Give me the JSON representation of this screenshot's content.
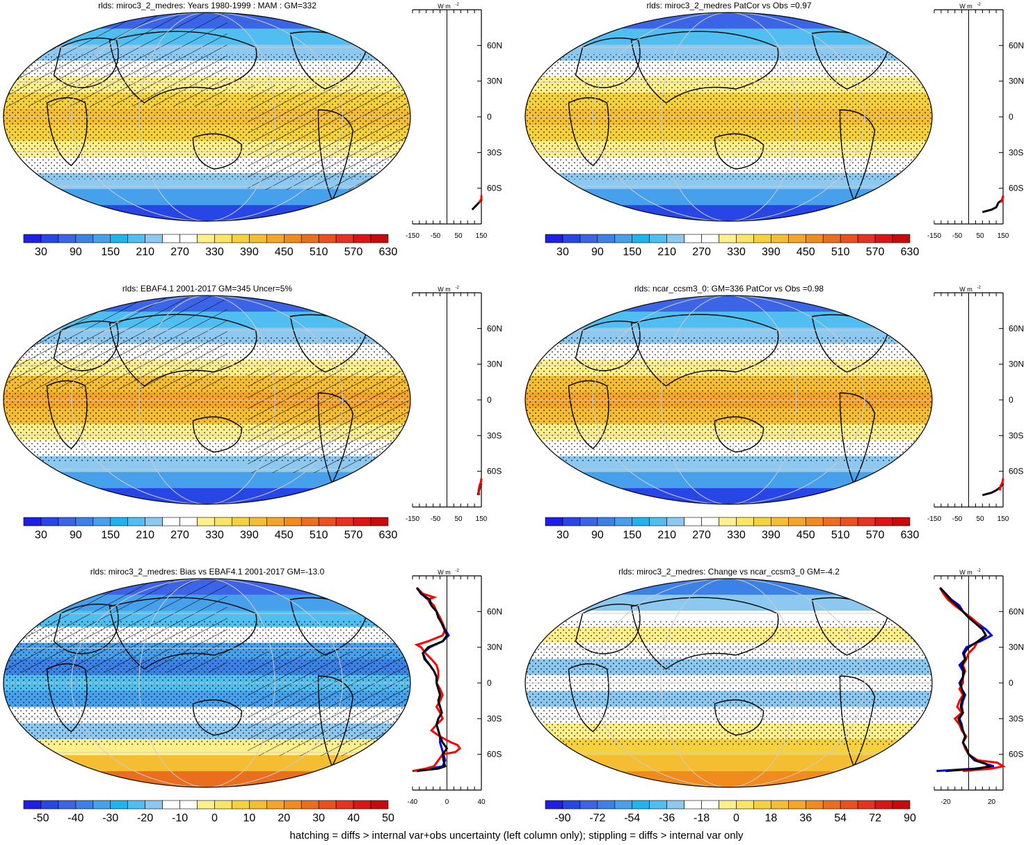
{
  "footer_note": "hatching = diffs > internal var+obs uncertainty (left column only); stippling = diffs > internal var only",
  "colors": {
    "abs_scale": [
      "#1e1ee6",
      "#2846e6",
      "#3c64e6",
      "#3c82e6",
      "#46a0eb",
      "#1eb4f0",
      "#50bef0",
      "#8cc8f0",
      "#ffffff",
      "#ffffff",
      "#fff08c",
      "#fae664",
      "#f5d23c",
      "#f5be32",
      "#f5a528",
      "#f08c1e",
      "#eb6e1e",
      "#eb501e",
      "#e6321e",
      "#dc1414",
      "#c80a0a"
    ],
    "diff_scale": [
      "#1e1ee6",
      "#2846e6",
      "#3c64e6",
      "#3c82e6",
      "#46a0eb",
      "#1eb4f0",
      "#50bef0",
      "#8cc8f0",
      "#ffffff",
      "#ffffff",
      "#fff08c",
      "#fae664",
      "#f5d23c",
      "#f5be32",
      "#f5a528",
      "#f08c1e",
      "#eb6e1e",
      "#eb501e",
      "#e6321e",
      "#dc1414",
      "#c80a0a"
    ],
    "zonal_model": "#000000",
    "zonal_red": "#ff0000",
    "zonal_blue": "#0000ff"
  },
  "chart_data": [
    {
      "type": "heatmap",
      "panel": "top-left",
      "title": "rlds: miroc3_2_medres: Years 1980-1999 : MAM : GM=332",
      "colorbar_labels": [
        "30",
        "90",
        "150",
        "210",
        "270",
        "330",
        "390",
        "450",
        "510",
        "570",
        "630"
      ],
      "zonal_axis": {
        "x_ticks": [
          "-150",
          "-50",
          "50",
          "150"
        ],
        "unit": "W m",
        "unit_sup": "-2",
        "lat_labels": [
          "60N",
          "30N",
          "0",
          "30S",
          "60S"
        ]
      },
      "zonal_series": [
        {
          "color": "black",
          "lat": [
            -78,
            -74,
            -70,
            -66
          ],
          "value": [
            110,
            130,
            150,
            150
          ]
        },
        {
          "color": "red",
          "lat": [
            -72,
            -69,
            -66
          ],
          "value": [
            140,
            150,
            150
          ]
        }
      ]
    },
    {
      "type": "heatmap",
      "panel": "top-right",
      "title": "rlds: miroc3_2_medres PatCor vs Obs =0.97",
      "colorbar_labels": [
        "30",
        "90",
        "150",
        "210",
        "270",
        "330",
        "390",
        "450",
        "510",
        "570",
        "630"
      ],
      "zonal_axis": {
        "x_ticks": [
          "-150",
          "-50",
          "50",
          "150"
        ],
        "unit": "W m",
        "unit_sup": "-2",
        "lat_labels": [
          "60N",
          "30N",
          "0",
          "30S",
          "60S"
        ]
      },
      "zonal_series": [
        {
          "color": "black",
          "lat": [
            -80,
            -78,
            -76,
            -72,
            -70,
            -67
          ],
          "value": [
            60,
            100,
            120,
            130,
            145,
            150
          ]
        },
        {
          "color": "red",
          "lat": [
            -72,
            -69,
            -66
          ],
          "value": [
            140,
            148,
            150
          ]
        }
      ]
    },
    {
      "type": "heatmap",
      "panel": "middle-left",
      "title": "rlds: EBAF4.1 2001-2017 GM=345 Uncer=5%",
      "colorbar_labels": [
        "30",
        "90",
        "150",
        "210",
        "270",
        "330",
        "390",
        "450",
        "510",
        "570",
        "630"
      ],
      "zonal_axis": {
        "x_ticks": [
          "-150",
          "-50",
          "50",
          "150"
        ],
        "unit": "W m",
        "unit_sup": "-2",
        "lat_labels": [
          "60N",
          "30N",
          "0",
          "30S",
          "60S"
        ]
      },
      "zonal_series": [
        {
          "color": "black",
          "lat": [
            -80,
            -76,
            -72,
            -70
          ],
          "value": [
            135,
            140,
            145,
            150
          ]
        },
        {
          "color": "red",
          "lat": [
            -80,
            -76,
            -72,
            -69,
            -66
          ],
          "value": [
            140,
            138,
            142,
            148,
            150
          ]
        }
      ]
    },
    {
      "type": "heatmap",
      "panel": "middle-right",
      "title": "rlds: ncar_ccsm3_0: GM=336 PatCor vs Obs =0.98",
      "colorbar_labels": [
        "30",
        "90",
        "150",
        "210",
        "270",
        "330",
        "390",
        "450",
        "510",
        "570",
        "630"
      ],
      "zonal_axis": {
        "x_ticks": [
          "-150",
          "-50",
          "50",
          "150"
        ],
        "unit": "W m",
        "unit_sup": "-2",
        "lat_labels": [
          "60N",
          "30N",
          "0",
          "30S",
          "60S"
        ]
      },
      "zonal_series": [
        {
          "color": "black",
          "lat": [
            -80,
            -78,
            -76,
            -73,
            -70
          ],
          "value": [
            60,
            100,
            120,
            140,
            150
          ]
        },
        {
          "color": "red",
          "lat": [
            -76,
            -72,
            -69,
            -66
          ],
          "value": [
            135,
            140,
            148,
            150
          ]
        }
      ]
    },
    {
      "type": "heatmap",
      "panel": "bottom-left",
      "title": "rlds: miroc3_2_medres: Bias vs EBAF4.1 2001-2017 GM=-13.0",
      "colorbar_labels": [
        "-50",
        "-40",
        "-30",
        "-20",
        "-10",
        "0",
        "10",
        "20",
        "30",
        "40",
        "50"
      ],
      "zonal_axis": {
        "x_ticks": [
          "-40",
          "0",
          "40"
        ],
        "unit": "W m",
        "unit_sup": "-2",
        "lat_labels": [
          "60N",
          "30N",
          "0",
          "30S",
          "60S"
        ]
      },
      "zonal_series": [
        {
          "color": "blue",
          "lat": [
            80,
            75,
            70,
            65,
            60,
            55,
            50,
            45,
            40,
            35,
            30,
            25,
            20,
            15,
            10,
            5,
            0,
            -5,
            -10,
            -15,
            -20,
            -25,
            -30,
            -35,
            -40,
            -45,
            -50,
            -55,
            -60,
            -65,
            -70,
            -72,
            -74
          ],
          "value": [
            -35,
            -30,
            -22,
            -18,
            -12,
            -10,
            -5,
            -2,
            2,
            -5,
            -20,
            -28,
            -25,
            -20,
            -15,
            -12,
            -12,
            -10,
            -8,
            -10,
            -8,
            -6,
            -10,
            -12,
            -10,
            -8,
            -8,
            -6,
            -4,
            -2,
            -5,
            -20,
            -40
          ]
        },
        {
          "color": "red",
          "lat": [
            80,
            75,
            72,
            70,
            65,
            60,
            55,
            50,
            45,
            40,
            35,
            32,
            30,
            28,
            25,
            20,
            15,
            10,
            5,
            0,
            -5,
            -10,
            -15,
            -20,
            -25,
            -30,
            -35,
            -40,
            -45,
            -50,
            -52,
            -55,
            -58,
            -60,
            -63,
            -65,
            -70,
            -72,
            -74
          ],
          "value": [
            -35,
            -28,
            -15,
            -22,
            -15,
            -12,
            -8,
            -5,
            -2,
            -5,
            -22,
            -35,
            -30,
            -28,
            -25,
            -18,
            -12,
            -10,
            -10,
            -12,
            -8,
            -5,
            -8,
            -12,
            -8,
            -5,
            -12,
            -18,
            -8,
            5,
            12,
            15,
            10,
            -5,
            -8,
            -10,
            -15,
            -25,
            -40
          ]
        },
        {
          "color": "black",
          "lat": [
            80,
            75,
            70,
            65,
            60,
            55,
            50,
            45,
            40,
            35,
            30,
            25,
            20,
            15,
            10,
            5,
            0,
            -5,
            -10,
            -15,
            -20,
            -25,
            -30,
            -35,
            -40,
            -45,
            -50,
            -55,
            -60,
            -65,
            -70,
            -72,
            -74
          ],
          "value": [
            -35,
            -30,
            -20,
            -18,
            -12,
            -10,
            -6,
            -3,
            0,
            -5,
            -22,
            -28,
            -26,
            -20,
            -15,
            -12,
            -12,
            -10,
            -8,
            -10,
            -8,
            -6,
            -10,
            -12,
            -10,
            -8,
            -5,
            0,
            -5,
            -4,
            -2,
            -10,
            -35
          ]
        }
      ]
    },
    {
      "type": "heatmap",
      "panel": "bottom-right",
      "title": "rlds: miroc3_2_medres: Change vs ncar_ccsm3_0 GM=-4.2",
      "colorbar_labels": [
        "-90",
        "-72",
        "-54",
        "-36",
        "-18",
        "0",
        "18",
        "36",
        "54",
        "72",
        "90"
      ],
      "zonal_axis": {
        "x_ticks": [
          "-20",
          "20"
        ],
        "unit": "W m",
        "unit_sup": "-2",
        "lat_labels": [
          "60N",
          "30N",
          "0",
          "30S",
          "60S"
        ]
      },
      "zonal_series": [
        {
          "color": "blue",
          "lat": [
            80,
            75,
            70,
            65,
            60,
            55,
            50,
            45,
            40,
            35,
            30,
            25,
            20,
            15,
            10,
            5,
            0,
            -5,
            -10,
            -15,
            -20,
            -25,
            -30,
            -35,
            -40,
            -45,
            -50,
            -55,
            -60,
            -65,
            -68,
            -70,
            -72,
            -74
          ],
          "value": [
            -25,
            -20,
            -15,
            -8,
            -5,
            0,
            8,
            15,
            20,
            10,
            -2,
            -5,
            -3,
            -8,
            -5,
            -5,
            -8,
            -6,
            -3,
            -5,
            -6,
            -5,
            -8,
            -6,
            -5,
            -3,
            -5,
            -2,
            0,
            5,
            15,
            22,
            5,
            -28
          ]
        },
        {
          "color": "red",
          "lat": [
            80,
            75,
            70,
            65,
            60,
            55,
            50,
            45,
            40,
            35,
            30,
            25,
            20,
            15,
            10,
            5,
            0,
            -5,
            -10,
            -15,
            -20,
            -25,
            -30,
            -35,
            -40,
            -45,
            -50,
            -55,
            -60,
            -65,
            -67,
            -70,
            -72,
            -74
          ],
          "value": [
            -25,
            -22,
            -18,
            -12,
            -5,
            2,
            8,
            12,
            15,
            8,
            5,
            0,
            -2,
            -5,
            -3,
            -5,
            -5,
            -8,
            -5,
            -8,
            -10,
            -6,
            -12,
            -8,
            -6,
            -2,
            -5,
            -3,
            0,
            8,
            25,
            30,
            20,
            -5
          ]
        },
        {
          "color": "black",
          "lat": [
            80,
            75,
            70,
            65,
            60,
            55,
            50,
            45,
            40,
            35,
            30,
            25,
            20,
            15,
            10,
            5,
            0,
            -5,
            -10,
            -15,
            -20,
            -25,
            -30,
            -35,
            -40,
            -45,
            -50,
            -55,
            -60,
            -65,
            -68,
            -70,
            -72,
            -74
          ],
          "value": [
            -25,
            -20,
            -16,
            -10,
            -5,
            0,
            6,
            12,
            15,
            8,
            0,
            -4,
            -3,
            -6,
            -4,
            -5,
            -7,
            -6,
            -4,
            -6,
            -7,
            -5,
            -9,
            -7,
            -5,
            -3,
            -5,
            -2,
            0,
            6,
            15,
            18,
            8,
            -20
          ]
        }
      ]
    }
  ]
}
